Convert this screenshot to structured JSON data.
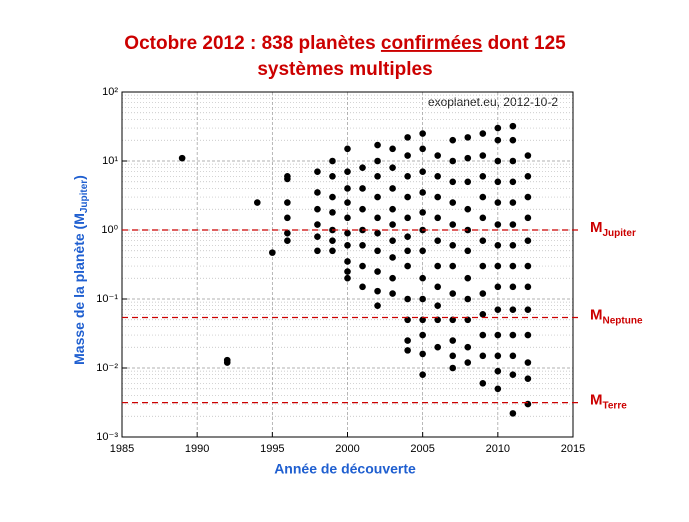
{
  "chart_data": {
    "type": "scatter",
    "title_before": "Octobre 2012 : 838 planètes ",
    "title_underlined": "confirmées",
    "title_after": " dont 125",
    "title_line2": "systèmes multiples",
    "annotation": "exoplanet.eu, 2012-10-2",
    "x_label": "Année  de découverte",
    "y_label": "Masse de la planète (M",
    "y_label_sub": "Jupiter",
    "y_label_end": ")",
    "xlim": [
      1985,
      2015
    ],
    "xticks": [
      1985,
      1990,
      1995,
      2000,
      2005,
      2010,
      2015
    ],
    "ylim": [
      0.001,
      100
    ],
    "yticks": [
      {
        "value": 0.001,
        "label": "10⁻³"
      },
      {
        "value": 0.01,
        "label": "10⁻²"
      },
      {
        "value": 0.1,
        "label": "10⁻¹"
      },
      {
        "value": 1,
        "label": "10⁰"
      },
      {
        "value": 10,
        "label": "10¹"
      },
      {
        "value": 100,
        "label": "10²"
      }
    ],
    "log_y": true,
    "grid": true,
    "minor_grid": true,
    "color": "#000000",
    "columns": [
      {
        "x": 1989,
        "values": [
          11
        ]
      },
      {
        "x": 1992,
        "values": [
          0.013,
          0.012
        ]
      },
      {
        "x": 1994,
        "values": [
          2.5
        ]
      },
      {
        "x": 1995,
        "values": [
          0.47
        ]
      },
      {
        "x": 1996,
        "values": [
          6,
          5.5,
          2.5,
          1.5,
          0.9,
          0.7
        ]
      },
      {
        "x": 1998,
        "values": [
          7,
          3.5,
          2,
          1.2,
          0.8,
          0.5
        ]
      },
      {
        "x": 1999,
        "values": [
          10,
          6,
          3,
          1.8,
          1,
          0.7,
          0.5
        ]
      },
      {
        "x": 2000,
        "values": [
          15,
          7,
          4,
          2.5,
          1.5,
          0.9,
          0.6,
          0.35,
          0.25,
          0.2
        ]
      },
      {
        "x": 2001,
        "values": [
          8,
          4,
          2,
          1,
          0.6,
          0.3,
          0.15
        ]
      },
      {
        "x": 2002,
        "values": [
          17,
          10,
          6,
          3,
          1.5,
          0.9,
          0.5,
          0.25,
          0.13,
          0.08
        ]
      },
      {
        "x": 2003,
        "values": [
          15,
          8,
          4,
          2,
          1.2,
          0.7,
          0.4,
          0.2,
          0.12
        ]
      },
      {
        "x": 2004,
        "values": [
          22,
          12,
          6,
          3,
          1.5,
          0.8,
          0.5,
          0.3,
          0.1,
          0.05,
          0.025,
          0.018
        ]
      },
      {
        "x": 2005,
        "values": [
          25,
          15,
          7,
          3.5,
          1.8,
          1,
          0.5,
          0.2,
          0.1,
          0.05,
          0.03,
          0.016,
          0.008
        ]
      },
      {
        "x": 2006,
        "values": [
          12,
          6,
          3,
          1.5,
          0.7,
          0.3,
          0.15,
          0.08,
          0.05,
          0.02
        ]
      },
      {
        "x": 2007,
        "values": [
          20,
          10,
          5,
          2.5,
          1.2,
          0.6,
          0.3,
          0.12,
          0.05,
          0.025,
          0.015,
          0.01
        ]
      },
      {
        "x": 2008,
        "values": [
          22,
          11,
          5,
          2,
          1,
          0.5,
          0.2,
          0.1,
          0.05,
          0.02,
          0.012
        ]
      },
      {
        "x": 2009,
        "values": [
          25,
          12,
          6,
          3,
          1.5,
          0.7,
          0.3,
          0.12,
          0.06,
          0.03,
          0.015,
          0.006
        ]
      },
      {
        "x": 2010,
        "values": [
          30,
          20,
          10,
          5,
          2.5,
          1.2,
          0.6,
          0.3,
          0.15,
          0.07,
          0.03,
          0.015,
          0.009,
          0.005
        ]
      },
      {
        "x": 2011,
        "values": [
          32,
          20,
          10,
          5,
          2.5,
          1.2,
          0.6,
          0.3,
          0.15,
          0.07,
          0.03,
          0.015,
          0.008,
          0.0022
        ]
      },
      {
        "x": 2012,
        "values": [
          12,
          6,
          3,
          1.5,
          0.7,
          0.3,
          0.15,
          0.07,
          0.03,
          0.012,
          0.007,
          0.003
        ]
      }
    ],
    "reference_lines": [
      {
        "symbol": "M",
        "subscript": "Jupiter",
        "value": 1,
        "color": "#cc0000"
      },
      {
        "symbol": "M",
        "subscript": "Neptune",
        "value": 0.054,
        "color": "#cc0000"
      },
      {
        "symbol": "M",
        "subscript": "Terre",
        "value": 0.00315,
        "color": "#cc0000"
      }
    ]
  }
}
